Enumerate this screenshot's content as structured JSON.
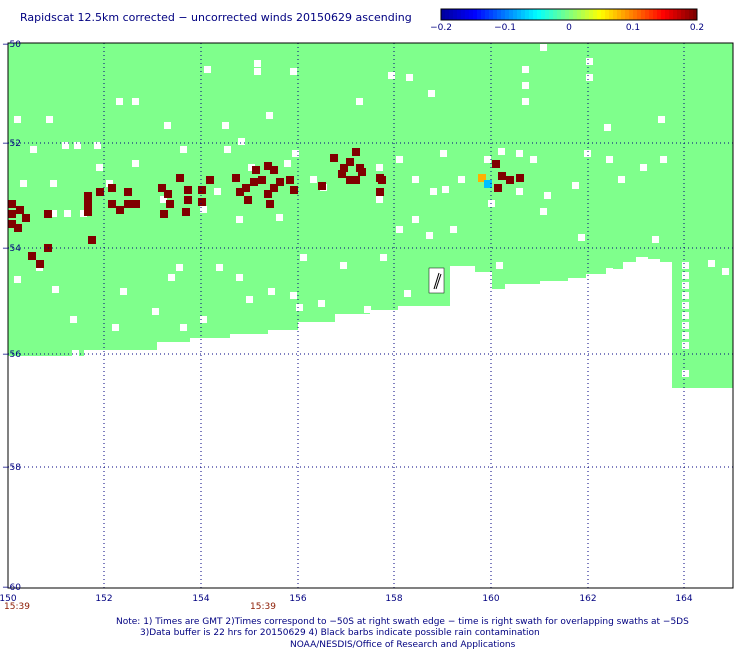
{
  "title": "Rapidscat 12.5km corrected − uncorrected winds 20150629 ascending",
  "colorbar": {
    "labels": [
      "−0.2",
      "−0.1",
      "0",
      "0.1",
      "0.2"
    ],
    "range": [
      -0.2,
      0.2
    ],
    "colors": [
      "#0000a0",
      "#0000ff",
      "#0080ff",
      "#00ffff",
      "#80ff80",
      "#ffff00",
      "#ff8000",
      "#ff0000",
      "#800000"
    ]
  },
  "map": {
    "lon_range": [
      150,
      165
    ],
    "lat_range": [
      -50,
      -60
    ],
    "x_ticks": [
      "150",
      "152",
      "154",
      "156",
      "158",
      "160",
      "162",
      "164"
    ],
    "y_ticks": [
      "−50",
      "−52",
      "−54",
      "−56",
      "−58",
      "−60"
    ],
    "grid": "dotted",
    "swath_color": "#7fff8c",
    "rain_color": "#800000",
    "missing_color": "#ffffff"
  },
  "times": [
    "15:39",
    "15:39"
  ],
  "notes": [
    "Note: 1) Times are GMT 2)Times correspond to −50S at right swath edge − time is right swath for overlapping swaths at −5DS",
    "3)Data buffer is 22 hrs for 20150629 4) Black barbs indicate possible rain contamination",
    "NOAA/NESDIS/Office of Research and Applications"
  ]
}
